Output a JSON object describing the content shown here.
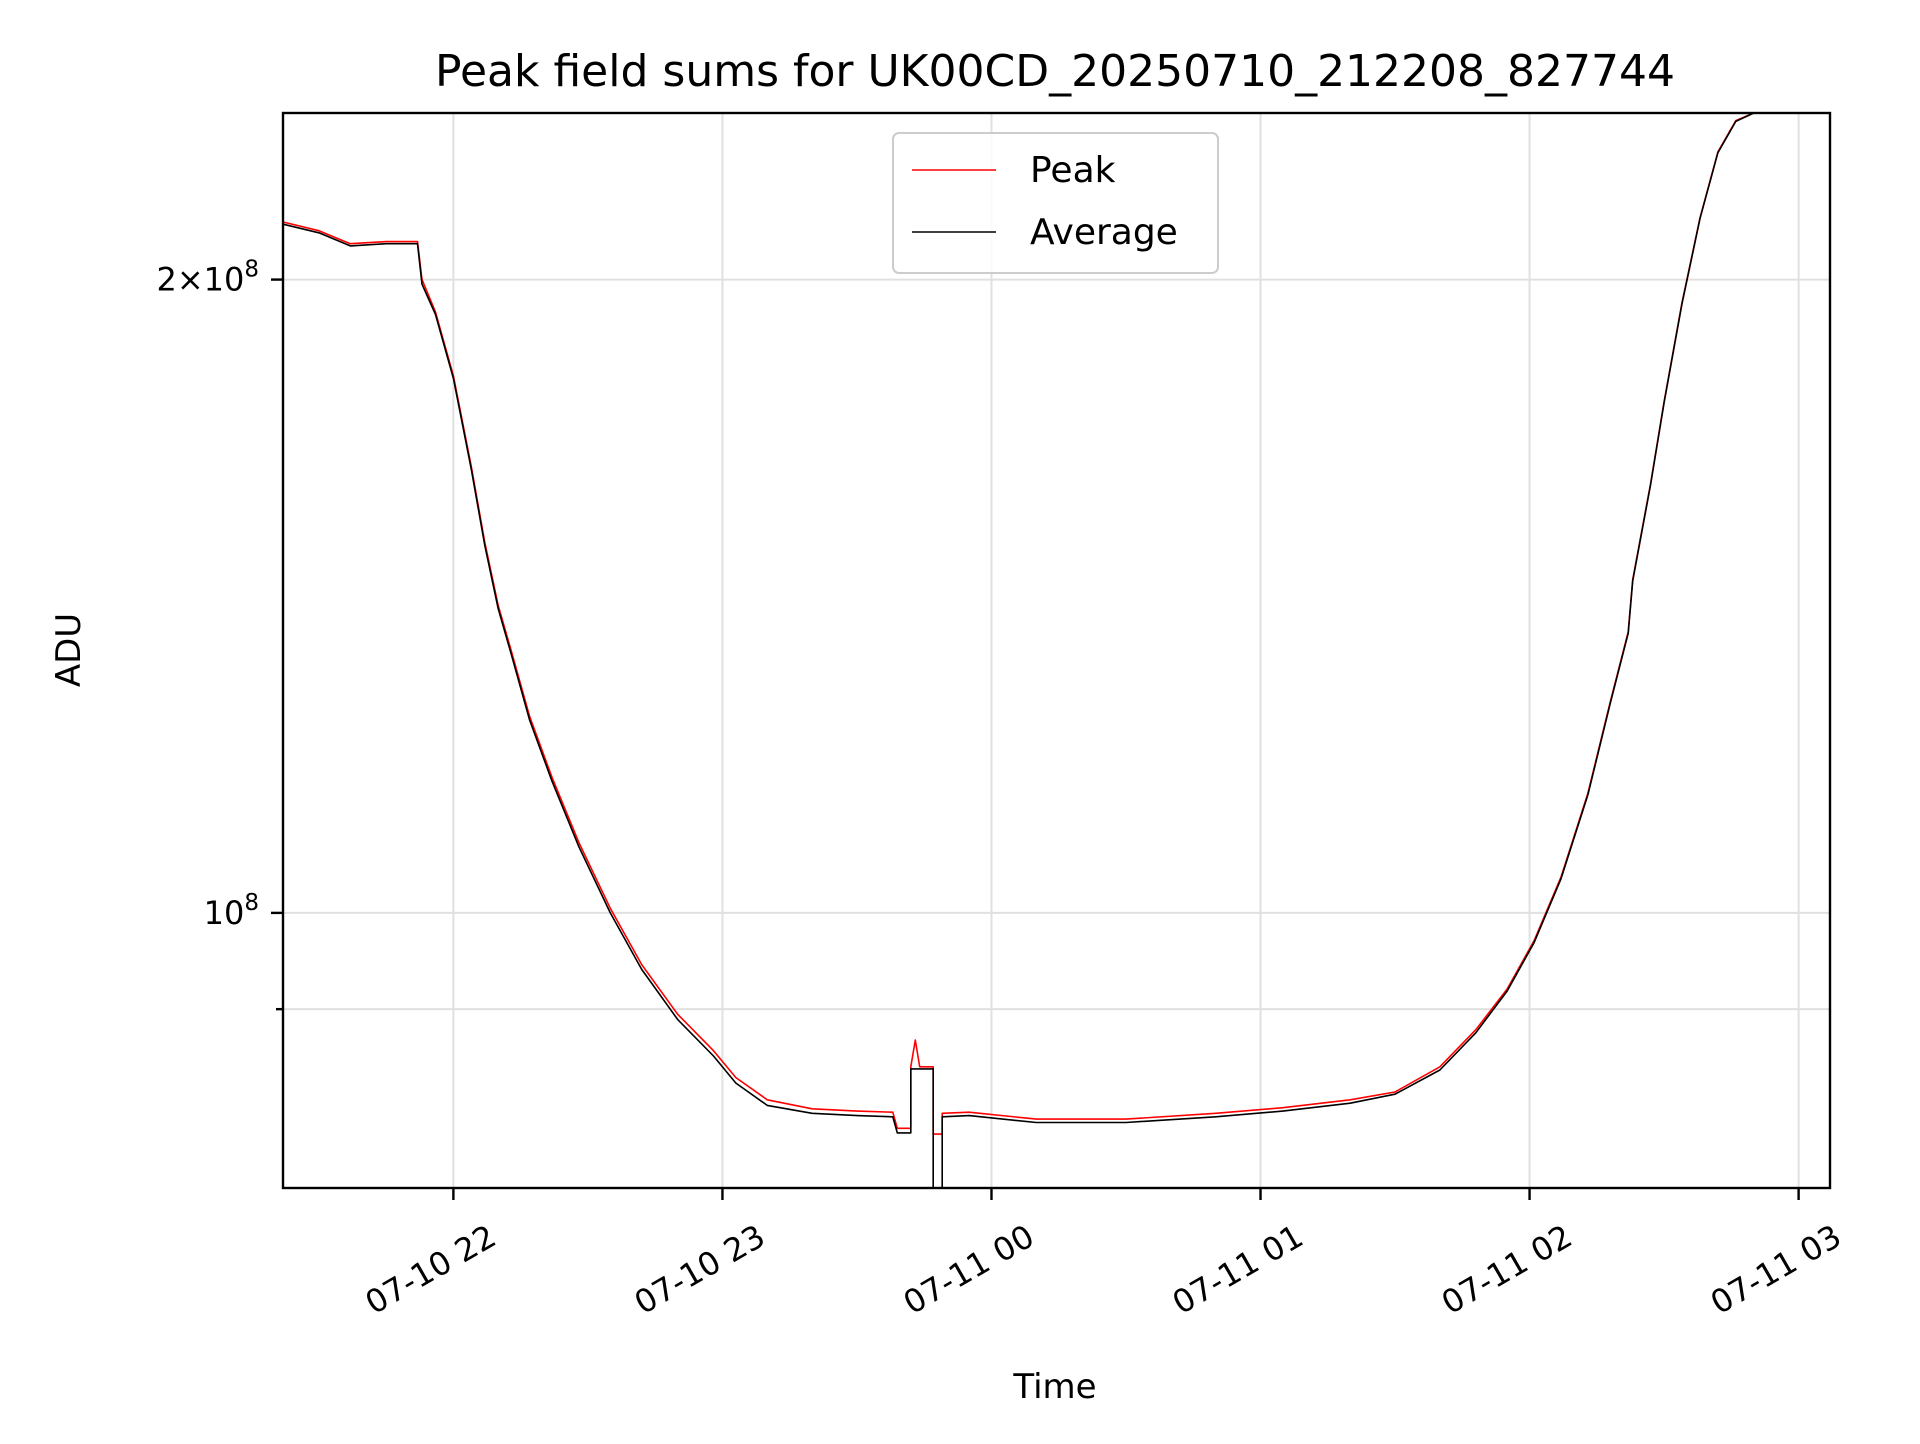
{
  "chart_data": {
    "type": "line",
    "title": "Peak field sums for UK00CD_20250710_212208_827744",
    "xlabel": "Time",
    "ylabel": "ADU",
    "yscale": "log",
    "grid": true,
    "legend_position": "top-center",
    "xlim": [
      "2025-07-10 21:22",
      "2025-07-11 03:07"
    ],
    "ylim": [
      74000000,
      240000000
    ],
    "x_ticks": [
      {
        "t": "2025-07-10 22:00",
        "label": "07-10 22"
      },
      {
        "t": "2025-07-10 23:00",
        "label": "07-10 23"
      },
      {
        "t": "2025-07-11 00:00",
        "label": "07-11 00"
      },
      {
        "t": "2025-07-11 01:00",
        "label": "07-11 01"
      },
      {
        "t": "2025-07-11 02:00",
        "label": "07-11 02"
      },
      {
        "t": "2025-07-11 03:00",
        "label": "07-11 03"
      }
    ],
    "y_ticks_major": [
      {
        "v": 200000000,
        "base": "2",
        "sep": "×10",
        "exp": "8"
      },
      {
        "v": 100000000,
        "base": "",
        "sep": "10",
        "exp": "8"
      }
    ],
    "y_ticks_minor": [
      90000000
    ],
    "series": [
      {
        "name": "Peak",
        "color": "#ff0000",
        "points": [
          [
            "2025-07-10 21:22",
            213000000
          ],
          [
            "2025-07-10 21:30",
            211000000
          ],
          [
            "2025-07-10 21:37",
            208000000
          ],
          [
            "2025-07-10 21:45",
            208500000
          ],
          [
            "2025-07-10 21:52",
            208500000
          ],
          [
            "2025-07-10 21:53",
            200000000
          ],
          [
            "2025-07-10 21:56",
            193000000
          ],
          [
            "2025-07-10 22:00",
            180000000
          ],
          [
            "2025-07-10 22:04",
            163000000
          ],
          [
            "2025-07-10 22:07",
            150000000
          ],
          [
            "2025-07-10 22:10",
            140000000
          ],
          [
            "2025-07-10 22:13",
            133000000
          ],
          [
            "2025-07-10 22:17",
            124000000
          ],
          [
            "2025-07-10 22:22",
            116000000
          ],
          [
            "2025-07-10 22:28",
            108000000
          ],
          [
            "2025-07-10 22:35",
            100500000
          ],
          [
            "2025-07-10 22:42",
            94500000
          ],
          [
            "2025-07-10 22:50",
            89500000
          ],
          [
            "2025-07-10 22:58",
            86000000
          ],
          [
            "2025-07-10 23:03",
            83500000
          ],
          [
            "2025-07-10 23:10",
            81500000
          ],
          [
            "2025-07-10 23:20",
            80700000
          ],
          [
            "2025-07-10 23:30",
            80500000
          ],
          [
            "2025-07-10 23:38",
            80400000
          ],
          [
            "2025-07-10 23:39",
            79000000
          ],
          [
            "2025-07-10 23:42",
            79000000
          ],
          [
            "2025-07-10 23:42",
            84500000
          ],
          [
            "2025-07-10 23:43",
            87000000
          ],
          [
            "2025-07-10 23:44",
            84500000
          ],
          [
            "2025-07-10 23:47",
            84500000
          ],
          [
            "2025-07-10 23:47",
            78500000
          ],
          [
            "2025-07-10 23:49",
            78500000
          ],
          [
            "2025-07-10 23:49",
            80300000
          ],
          [
            "2025-07-10 23:55",
            80400000
          ],
          [
            "2025-07-11 00:10",
            79800000
          ],
          [
            "2025-07-11 00:30",
            79800000
          ],
          [
            "2025-07-11 00:50",
            80300000
          ],
          [
            "2025-07-11 01:05",
            80800000
          ],
          [
            "2025-07-11 01:20",
            81500000
          ],
          [
            "2025-07-11 01:30",
            82200000
          ],
          [
            "2025-07-11 01:40",
            84500000
          ],
          [
            "2025-07-11 01:48",
            88000000
          ],
          [
            "2025-07-11 01:55",
            92000000
          ],
          [
            "2025-07-11 02:01",
            97000000
          ],
          [
            "2025-07-11 02:07",
            104000000
          ],
          [
            "2025-07-11 02:13",
            114000000
          ],
          [
            "2025-07-11 02:18",
            126000000
          ],
          [
            "2025-07-11 02:22",
            136000000
          ],
          [
            "2025-07-11 02:23",
            144000000
          ],
          [
            "2025-07-11 02:27",
            160000000
          ],
          [
            "2025-07-11 02:30",
            175000000
          ],
          [
            "2025-07-11 02:34",
            195000000
          ],
          [
            "2025-07-11 02:38",
            214000000
          ],
          [
            "2025-07-11 02:42",
            230000000
          ],
          [
            "2025-07-11 02:46",
            238000000
          ],
          [
            "2025-07-11 02:50",
            240000000
          ],
          [
            "2025-07-11 03:07",
            240000000
          ]
        ]
      },
      {
        "name": "Average",
        "color": "#000000",
        "points": [
          [
            "2025-07-10 21:22",
            212500000
          ],
          [
            "2025-07-10 21:30",
            210500000
          ],
          [
            "2025-07-10 21:37",
            207500000
          ],
          [
            "2025-07-10 21:45",
            208000000
          ],
          [
            "2025-07-10 21:52",
            208000000
          ],
          [
            "2025-07-10 21:53",
            199000000
          ],
          [
            "2025-07-10 21:56",
            192500000
          ],
          [
            "2025-07-10 22:00",
            179500000
          ],
          [
            "2025-07-10 22:04",
            162500000
          ],
          [
            "2025-07-10 22:07",
            149500000
          ],
          [
            "2025-07-10 22:10",
            139500000
          ],
          [
            "2025-07-10 22:13",
            132500000
          ],
          [
            "2025-07-10 22:17",
            123500000
          ],
          [
            "2025-07-10 22:22",
            115500000
          ],
          [
            "2025-07-10 22:28",
            107500000
          ],
          [
            "2025-07-10 22:35",
            100000000
          ],
          [
            "2025-07-10 22:42",
            94000000
          ],
          [
            "2025-07-10 22:50",
            89000000
          ],
          [
            "2025-07-10 22:58",
            85500000
          ],
          [
            "2025-07-10 23:03",
            83000000
          ],
          [
            "2025-07-10 23:10",
            81000000
          ],
          [
            "2025-07-10 23:20",
            80300000
          ],
          [
            "2025-07-10 23:30",
            80100000
          ],
          [
            "2025-07-10 23:38",
            80000000
          ],
          [
            "2025-07-10 23:39",
            78600000
          ],
          [
            "2025-07-10 23:42",
            78600000
          ],
          [
            "2025-07-10 23:42",
            84300000
          ],
          [
            "2025-07-10 23:47",
            84300000
          ],
          [
            "2025-07-10 23:47",
            74000000
          ],
          [
            "2025-07-10 23:49",
            74000000
          ],
          [
            "2025-07-10 23:49",
            80000000
          ],
          [
            "2025-07-10 23:55",
            80100000
          ],
          [
            "2025-07-11 00:10",
            79500000
          ],
          [
            "2025-07-11 00:30",
            79500000
          ],
          [
            "2025-07-11 00:50",
            80000000
          ],
          [
            "2025-07-11 01:05",
            80500000
          ],
          [
            "2025-07-11 01:20",
            81200000
          ],
          [
            "2025-07-11 01:30",
            82000000
          ],
          [
            "2025-07-11 01:40",
            84200000
          ],
          [
            "2025-07-11 01:48",
            87700000
          ],
          [
            "2025-07-11 01:55",
            91800000
          ],
          [
            "2025-07-11 02:01",
            96800000
          ],
          [
            "2025-07-11 02:07",
            103800000
          ],
          [
            "2025-07-11 02:13",
            113800000
          ],
          [
            "2025-07-11 02:18",
            125800000
          ],
          [
            "2025-07-11 02:22",
            135800000
          ],
          [
            "2025-07-11 02:23",
            143800000
          ],
          [
            "2025-07-11 02:27",
            159800000
          ],
          [
            "2025-07-11 02:30",
            174800000
          ],
          [
            "2025-07-11 02:34",
            194800000
          ],
          [
            "2025-07-11 02:38",
            213800000
          ],
          [
            "2025-07-11 02:42",
            229800000
          ],
          [
            "2025-07-11 02:46",
            237800000
          ],
          [
            "2025-07-11 02:50",
            240000000
          ],
          [
            "2025-07-11 03:07",
            240000000
          ]
        ]
      }
    ]
  }
}
